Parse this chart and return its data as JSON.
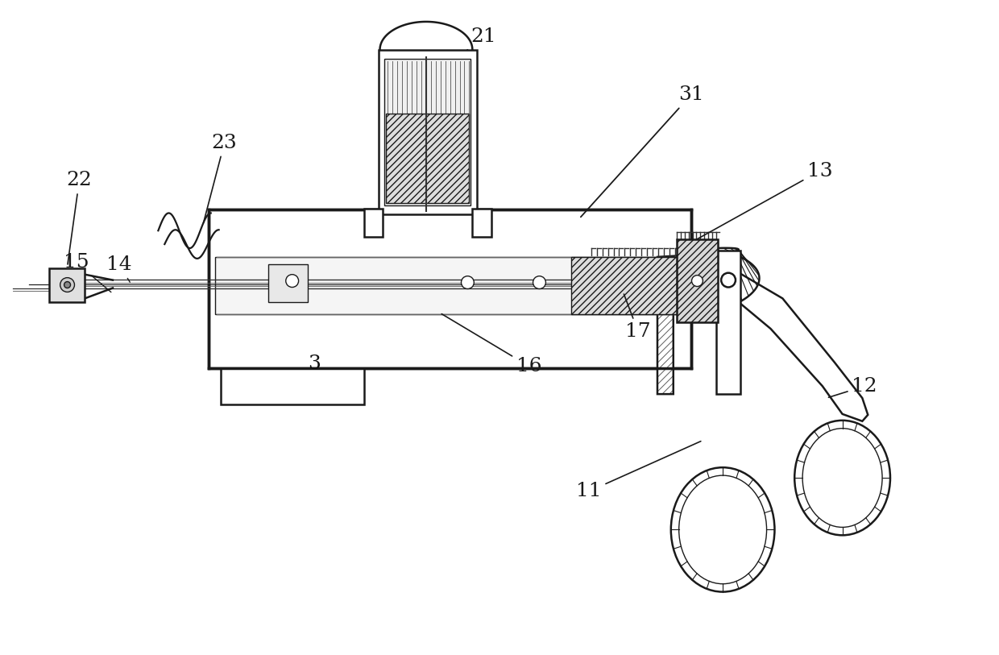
{
  "bg_color": "#ffffff",
  "line_color": "#1a1a1a",
  "label_color": "#111111",
  "figsize": [
    12.4,
    8.13
  ],
  "dpi": 100,
  "label_fontsize": 18
}
